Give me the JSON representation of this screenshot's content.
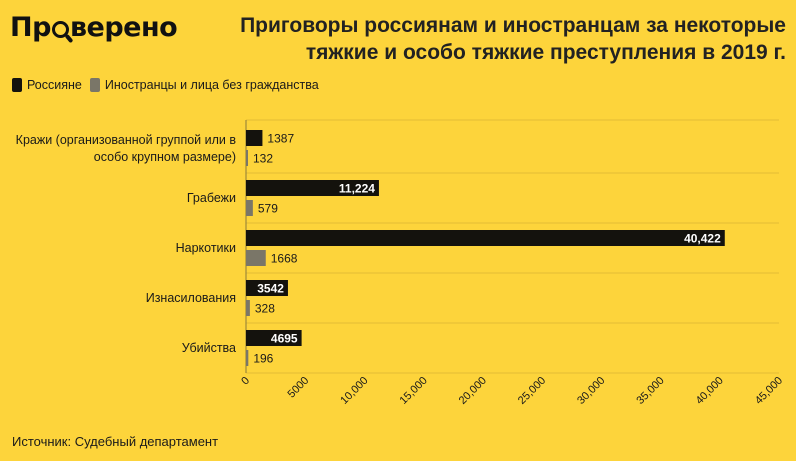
{
  "logo": {
    "pre": "Пр",
    "post": "верено"
  },
  "title": "Приговоры россиянам и иностранцам за некоторые тяжкие и особо тяжкие преступления в 2019 г.",
  "source": "Источник: Судебный департамент",
  "colors": {
    "background": "#FDD43B",
    "russians": "#14120d",
    "foreigners": "#7a7668"
  },
  "chart_data": {
    "type": "bar",
    "orientation": "horizontal",
    "categories": [
      [
        "Кражи (организованной группой или в",
        "особо крупном размере)"
      ],
      [
        "Грабежи"
      ],
      [
        "Наркотики"
      ],
      [
        "Изнасилования"
      ],
      [
        "Убийства"
      ]
    ],
    "series": [
      {
        "name": "Россияне",
        "values": [
          1387,
          11224,
          40422,
          3542,
          4695
        ],
        "labels": [
          "1387",
          "11,224",
          "40,422",
          "3542",
          "4695"
        ]
      },
      {
        "name": "Иностранцы и лица без гражданства",
        "values": [
          132,
          579,
          1668,
          328,
          196
        ],
        "labels": [
          "132",
          "579",
          "1668",
          "328",
          "196"
        ]
      }
    ],
    "xlim": [
      0,
      45000
    ],
    "ticks": [
      0,
      5000,
      10000,
      15000,
      20000,
      25000,
      30000,
      35000,
      40000,
      45000
    ],
    "tick_labels": [
      "0",
      "5000",
      "10,000",
      "15,000",
      "20,000",
      "25,000",
      "30,000",
      "35,000",
      "40,000",
      "45,000"
    ],
    "grid": true,
    "legend_position": "top-left"
  }
}
